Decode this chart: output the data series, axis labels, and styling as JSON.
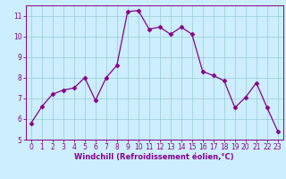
{
  "x": [
    0,
    1,
    2,
    3,
    4,
    5,
    6,
    7,
    8,
    9,
    10,
    11,
    12,
    13,
    14,
    15,
    16,
    17,
    18,
    19,
    20,
    21,
    22,
    23
  ],
  "y": [
    5.8,
    6.6,
    7.2,
    7.4,
    7.5,
    8.0,
    6.9,
    8.0,
    8.6,
    11.2,
    11.25,
    10.35,
    10.45,
    10.1,
    10.45,
    10.1,
    8.3,
    8.1,
    7.85,
    6.55,
    7.05,
    7.75,
    6.55,
    5.4
  ],
  "line_color": "#880088",
  "marker": "D",
  "marker_size": 2.5,
  "bg_color": "#cceeff",
  "grid_color": "#99cccc",
  "xlabel": "Windchill (Refroidissement éolien,°C)",
  "xlim": [
    -0.5,
    23.5
  ],
  "ylim": [
    5,
    11.5
  ],
  "yticks": [
    5,
    6,
    7,
    8,
    9,
    10,
    11
  ],
  "xticks": [
    0,
    1,
    2,
    3,
    4,
    5,
    6,
    7,
    8,
    9,
    10,
    11,
    12,
    13,
    14,
    15,
    16,
    17,
    18,
    19,
    20,
    21,
    22,
    23
  ],
  "tick_color": "#880088",
  "label_color": "#880088",
  "spine_color": "#880088",
  "tick_labelsize": 5.5,
  "xlabel_fontsize": 6.0
}
